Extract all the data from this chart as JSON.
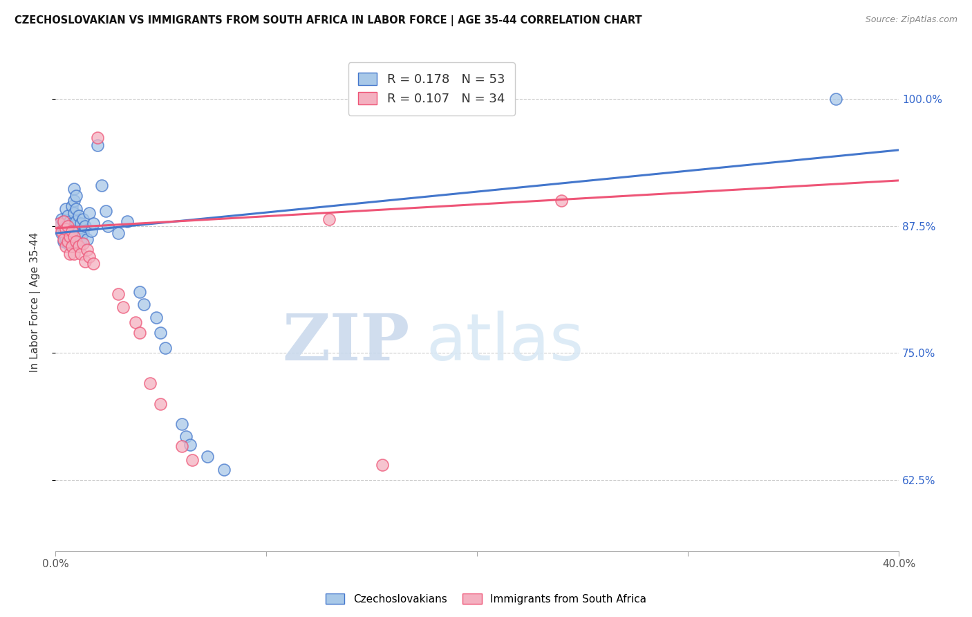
{
  "title": "CZECHOSLOVAKIAN VS IMMIGRANTS FROM SOUTH AFRICA IN LABOR FORCE | AGE 35-44 CORRELATION CHART",
  "source": "Source: ZipAtlas.com",
  "ylabel": "In Labor Force | Age 35-44",
  "yticks": [
    0.625,
    0.75,
    0.875,
    1.0
  ],
  "ytick_labels": [
    "62.5%",
    "75.0%",
    "87.5%",
    "100.0%"
  ],
  "xlim": [
    0.0,
    0.4
  ],
  "ylim": [
    0.555,
    1.045
  ],
  "legend_blue_r": "R = 0.178",
  "legend_blue_n": "N = 53",
  "legend_pink_r": "R = 0.107",
  "legend_pink_n": "N = 34",
  "label_blue": "Czechoslovakians",
  "label_pink": "Immigrants from South Africa",
  "color_blue": "#a8c8e8",
  "color_pink": "#f4b0c0",
  "line_blue": "#4477cc",
  "line_pink": "#ee5577",
  "watermark_zip": "ZIP",
  "watermark_atlas": "atlas",
  "blue_points": [
    [
      0.002,
      0.878
    ],
    [
      0.003,
      0.882
    ],
    [
      0.003,
      0.868
    ],
    [
      0.004,
      0.88
    ],
    [
      0.004,
      0.872
    ],
    [
      0.004,
      0.86
    ],
    [
      0.005,
      0.892
    ],
    [
      0.005,
      0.875
    ],
    [
      0.005,
      0.862
    ],
    [
      0.006,
      0.885
    ],
    [
      0.006,
      0.87
    ],
    [
      0.006,
      0.858
    ],
    [
      0.007,
      0.88
    ],
    [
      0.007,
      0.865
    ],
    [
      0.008,
      0.895
    ],
    [
      0.008,
      0.878
    ],
    [
      0.008,
      0.862
    ],
    [
      0.009,
      0.912
    ],
    [
      0.009,
      0.9
    ],
    [
      0.009,
      0.888
    ],
    [
      0.009,
      0.875
    ],
    [
      0.01,
      0.905
    ],
    [
      0.01,
      0.892
    ],
    [
      0.01,
      0.88
    ],
    [
      0.01,
      0.868
    ],
    [
      0.011,
      0.885
    ],
    [
      0.011,
      0.87
    ],
    [
      0.012,
      0.878
    ],
    [
      0.012,
      0.862
    ],
    [
      0.013,
      0.882
    ],
    [
      0.013,
      0.868
    ],
    [
      0.014,
      0.875
    ],
    [
      0.015,
      0.862
    ],
    [
      0.016,
      0.888
    ],
    [
      0.017,
      0.87
    ],
    [
      0.018,
      0.878
    ],
    [
      0.02,
      0.955
    ],
    [
      0.022,
      0.915
    ],
    [
      0.024,
      0.89
    ],
    [
      0.025,
      0.875
    ],
    [
      0.03,
      0.868
    ],
    [
      0.034,
      0.88
    ],
    [
      0.04,
      0.81
    ],
    [
      0.042,
      0.798
    ],
    [
      0.048,
      0.785
    ],
    [
      0.05,
      0.77
    ],
    [
      0.052,
      0.755
    ],
    [
      0.06,
      0.68
    ],
    [
      0.062,
      0.668
    ],
    [
      0.064,
      0.66
    ],
    [
      0.072,
      0.648
    ],
    [
      0.08,
      0.635
    ],
    [
      0.37,
      1.0
    ]
  ],
  "pink_points": [
    [
      0.002,
      0.878
    ],
    [
      0.003,
      0.87
    ],
    [
      0.004,
      0.88
    ],
    [
      0.004,
      0.862
    ],
    [
      0.005,
      0.872
    ],
    [
      0.005,
      0.855
    ],
    [
      0.006,
      0.875
    ],
    [
      0.006,
      0.86
    ],
    [
      0.007,
      0.865
    ],
    [
      0.007,
      0.848
    ],
    [
      0.008,
      0.87
    ],
    [
      0.008,
      0.855
    ],
    [
      0.009,
      0.865
    ],
    [
      0.009,
      0.848
    ],
    [
      0.01,
      0.86
    ],
    [
      0.011,
      0.855
    ],
    [
      0.012,
      0.848
    ],
    [
      0.013,
      0.858
    ],
    [
      0.014,
      0.84
    ],
    [
      0.015,
      0.852
    ],
    [
      0.016,
      0.845
    ],
    [
      0.018,
      0.838
    ],
    [
      0.02,
      0.962
    ],
    [
      0.03,
      0.808
    ],
    [
      0.032,
      0.795
    ],
    [
      0.038,
      0.78
    ],
    [
      0.04,
      0.77
    ],
    [
      0.045,
      0.72
    ],
    [
      0.05,
      0.7
    ],
    [
      0.06,
      0.658
    ],
    [
      0.065,
      0.645
    ],
    [
      0.13,
      0.882
    ],
    [
      0.24,
      0.9
    ],
    [
      0.155,
      0.64
    ]
  ]
}
